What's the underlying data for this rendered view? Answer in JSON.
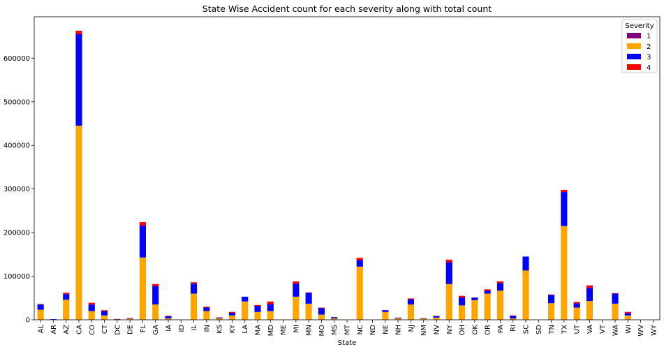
{
  "chart_data": {
    "type": "bar",
    "stacked": true,
    "title": "State Wise Accident count for each severity along with total count",
    "xlabel": "State",
    "ylabel": "",
    "ylim": [
      0,
      695000
    ],
    "yticks": [
      0,
      100000,
      200000,
      300000,
      400000,
      500000,
      600000
    ],
    "grid": false,
    "legend": {
      "title": "Severity",
      "placement": "top-right"
    },
    "categories": [
      "AL",
      "AR",
      "AZ",
      "CA",
      "CO",
      "CT",
      "DC",
      "DE",
      "FL",
      "GA",
      "IA",
      "ID",
      "IL",
      "IN",
      "KS",
      "KY",
      "LA",
      "MA",
      "MD",
      "ME",
      "MI",
      "MN",
      "MO",
      "MS",
      "MT",
      "NC",
      "ND",
      "NE",
      "NH",
      "NJ",
      "NM",
      "NV",
      "NY",
      "OH",
      "OK",
      "OR",
      "PA",
      "RI",
      "SC",
      "SD",
      "TN",
      "TX",
      "UT",
      "VA",
      "VT",
      "WA",
      "WI",
      "WV",
      "WY"
    ],
    "series": [
      {
        "name": "1",
        "color": "#800080",
        "values": [
          0,
          0,
          0,
          0,
          0,
          0,
          0,
          0,
          0,
          0,
          0,
          0,
          0,
          0,
          0,
          0,
          0,
          0,
          0,
          0,
          0,
          0,
          0,
          0,
          0,
          0,
          0,
          0,
          0,
          0,
          0,
          0,
          0,
          0,
          0,
          0,
          0,
          0,
          0,
          0,
          0,
          0,
          0,
          0,
          0,
          0,
          0,
          0,
          0
        ]
      },
      {
        "name": "2",
        "color": "#ffa500",
        "values": [
          23000,
          0,
          46000,
          445000,
          20000,
          10000,
          1000,
          2000,
          143000,
          35000,
          3000,
          500,
          60000,
          20000,
          3000,
          10000,
          42000,
          18000,
          20000,
          500,
          53000,
          37000,
          12000,
          3000,
          0,
          122000,
          0,
          18000,
          3000,
          35000,
          2500,
          5000,
          82000,
          33000,
          45000,
          60000,
          67000,
          3000,
          113000,
          0,
          38000,
          215000,
          28000,
          43000,
          0,
          37000,
          10000,
          500,
          0
        ]
      },
      {
        "name": "3",
        "color": "#0000ff",
        "values": [
          12000,
          1500,
          13000,
          210000,
          15000,
          10000,
          500,
          1000,
          73000,
          42000,
          5000,
          0,
          23000,
          8000,
          2000,
          6000,
          11000,
          14000,
          16000,
          0,
          30000,
          25000,
          15000,
          3000,
          0,
          15000,
          0,
          4000,
          1500,
          12000,
          1000,
          3000,
          50000,
          18000,
          6000,
          7000,
          17000,
          6000,
          32000,
          0,
          19000,
          78000,
          10000,
          30000,
          0,
          23000,
          5000,
          0,
          0
        ]
      },
      {
        "name": "4",
        "color": "#ff0000",
        "values": [
          1000,
          0,
          3000,
          8000,
          4000,
          2000,
          500,
          1000,
          8000,
          5000,
          1000,
          0,
          3000,
          2000,
          500,
          2000,
          0,
          2000,
          6000,
          0,
          5000,
          1000,
          1000,
          500,
          0,
          5000,
          0,
          500,
          500,
          2000,
          500,
          1000,
          6000,
          4000,
          0,
          3000,
          4000,
          1000,
          0,
          0,
          1000,
          5000,
          3000,
          6000,
          0,
          1000,
          3000,
          0,
          0
        ]
      }
    ]
  }
}
